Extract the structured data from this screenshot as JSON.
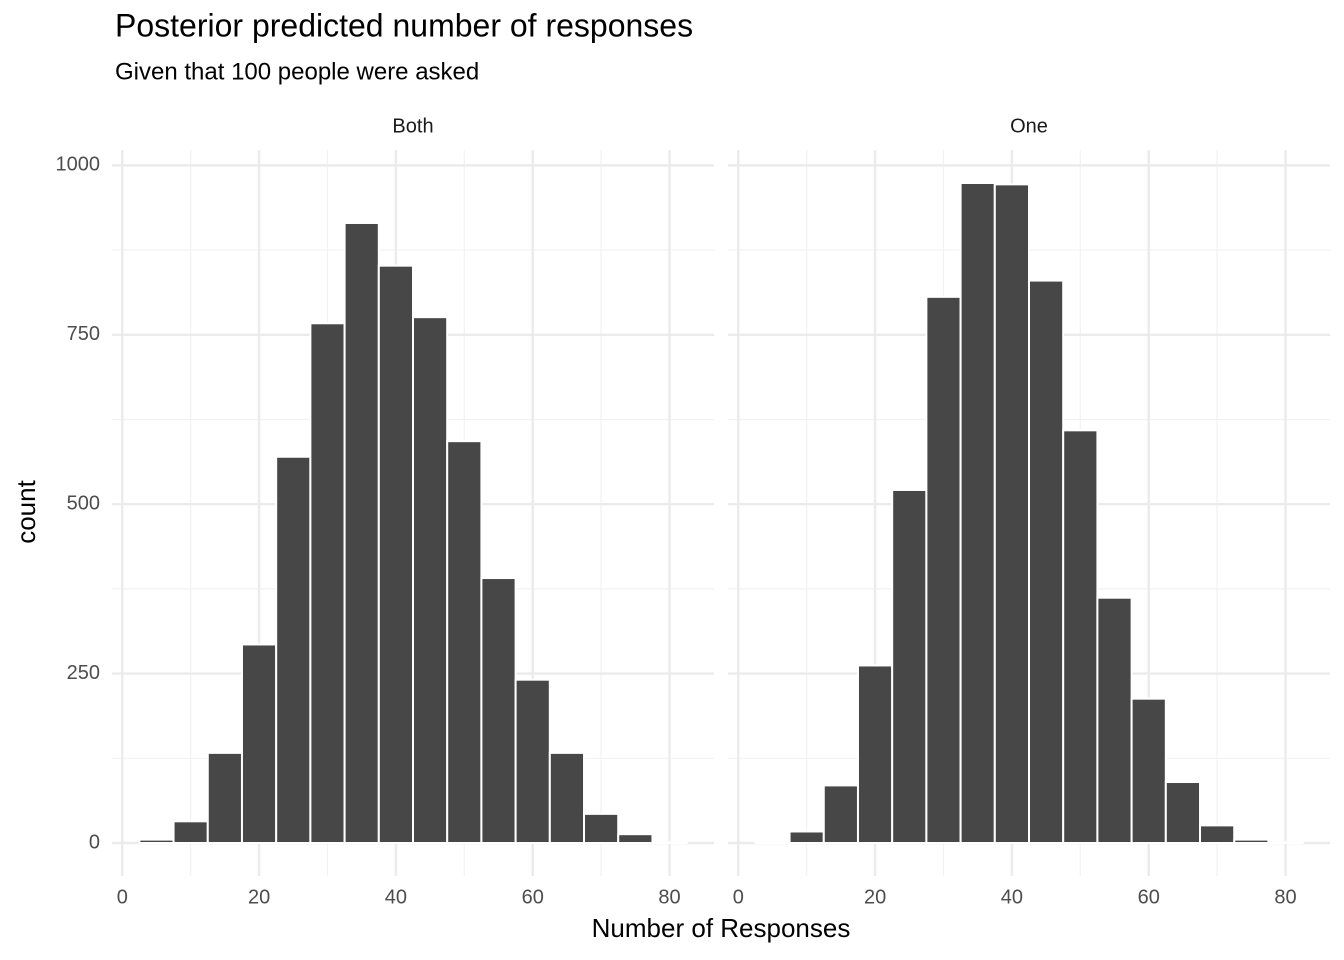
{
  "chart_data": {
    "type": "histogram",
    "title": "Posterior predicted number of responses",
    "subtitle": "Given that 100 people were asked",
    "x_label": "Number of Responses",
    "y_label": "count",
    "color": "#474747",
    "bins": [
      2.5,
      7.5,
      12.5,
      17.5,
      22.5,
      27.5,
      32.5,
      37.5,
      42.5,
      47.5,
      52.5,
      57.5,
      62.5,
      67.5,
      72.5,
      77.5,
      82.5
    ],
    "facets": [
      {
        "name": "Both",
        "values": [
          5,
          32,
          133,
          293,
          570,
          767,
          915,
          852,
          776,
          593,
          391,
          241,
          133,
          43,
          13,
          1
        ]
      },
      {
        "name": "One",
        "values": [
          1,
          17,
          85,
          262,
          521,
          806,
          974,
          972,
          830,
          609,
          362,
          213,
          90,
          26,
          5,
          1
        ]
      }
    ],
    "xlim": [
      -1.5,
      86.5
    ],
    "ylim": [
      -48.7,
      1022.7
    ],
    "xticks": [
      0,
      20,
      40,
      60,
      80
    ],
    "yticks": [
      0,
      250,
      500,
      750,
      1000
    ],
    "xminor": [
      10,
      30,
      50,
      70
    ],
    "yminor": [
      125,
      375,
      625,
      875
    ],
    "grid": true
  }
}
